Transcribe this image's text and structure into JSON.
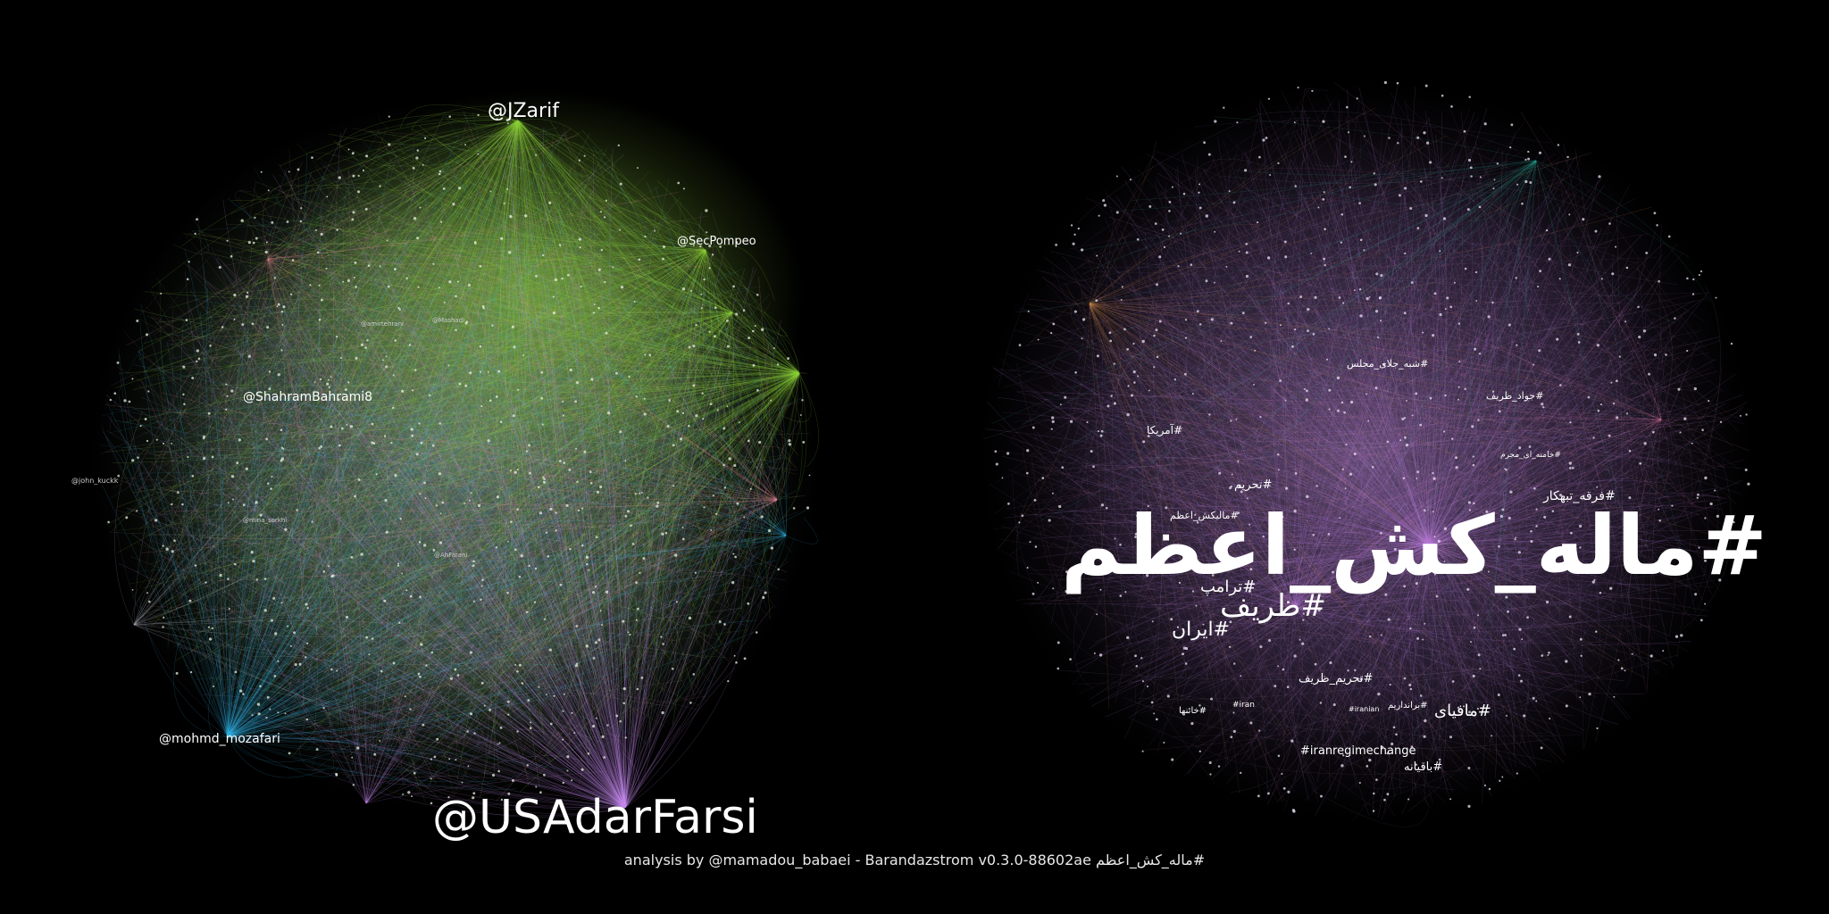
{
  "footer": {
    "credit": "#ماله_کش_اعظم analysis by @mamadou_babaei - Barandazstrom v0.3.0-88602ae"
  },
  "left_graph": {
    "hubs": {
      "usadarfarsi": "@USAdarFarsi",
      "jzarif": "@JZarif",
      "secpompeo": "@SecPompeo",
      "shahrambahrami": "@ShahramBahrami8",
      "mozafari": "@mohmd_mozafari",
      "john": "@john_kuckk",
      "minor1": "@amirtehrani",
      "minor2": "@AhFarani",
      "minor3": "@Mashadi",
      "minor4": "@mina_sorkhi"
    },
    "colors": {
      "green": "#8fd13a",
      "cyan": "#35b8e6",
      "violet": "#c88ff0",
      "pink": "#f08a9a",
      "orange": "#e6a040"
    }
  },
  "right_graph": {
    "hubs": {
      "main": "#ماله_کش_اعظم",
      "zarif": "#ظریف",
      "iran": "#ایران",
      "trump": "#ترامپ",
      "mafia": "#مافیای",
      "regime": "#iranregimechange",
      "tahrim_zarif": "#تحریم_ظریف",
      "tahrim": "#تحریم",
      "americaa": "#آمریکا",
      "ferqe": "#فرقه_تبهکار",
      "javad": "#جواد_ظریف",
      "shabe": "#شبه_جلای_مجلس",
      "khamenei": "#خامنه_ای_مجرم",
      "mali": "#مالیکش_اعظم",
      "baghi": "#باقیانه",
      "iran_en": "#iran",
      "iranian": "#iranian",
      "khaen": "#خائنها",
      "ralf": "#برانداریم"
    },
    "colors": {
      "violet": "#b77fe0",
      "orange": "#d08a4a",
      "teal": "#2fb09a",
      "pink": "#e07fb0"
    }
  }
}
